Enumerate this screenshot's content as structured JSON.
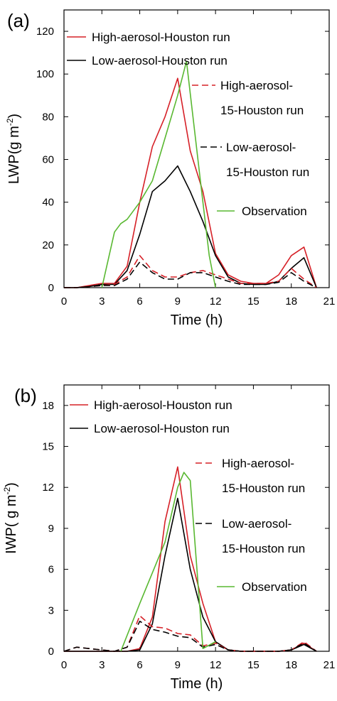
{
  "chart_data": [
    {
      "type": "line",
      "panel_label": "(a)",
      "xlabel": "Time (h)",
      "ylabel_main": "LWP(g m",
      "ylabel_sup": "-2",
      "ylabel_close": ")",
      "xlim": [
        0,
        21
      ],
      "ylim": [
        0,
        130
      ],
      "xticks": [
        "0",
        "3",
        "6",
        "9",
        "12",
        "15",
        "18",
        "21"
      ],
      "yticks": [
        "0",
        "20",
        "40",
        "60",
        "80",
        "100",
        "120"
      ],
      "legend": [
        {
          "label": "High-aerosol-Houston run",
          "color": "#d62027",
          "dashed": false
        },
        {
          "label": "Low-aerosol-Houston run",
          "color": "#000000",
          "dashed": false
        },
        {
          "label": "High-aerosol-",
          "label2": "15-Houston run",
          "color": "#d62027",
          "dashed": true
        },
        {
          "label": "Low-aerosol-",
          "label2": "15-Houston run",
          "color": "#000000",
          "dashed": true
        },
        {
          "label": "Observation",
          "color": "#59b831",
          "dashed": false
        }
      ],
      "series": [
        {
          "name": "High-aerosol-Houston run",
          "color": "#d62027",
          "dashed": false,
          "x": [
            0,
            1,
            2,
            3,
            4,
            5,
            6,
            7,
            8,
            9,
            10,
            11,
            12,
            13,
            14,
            15,
            16,
            17,
            18,
            19,
            20
          ],
          "y": [
            0,
            0,
            1,
            2,
            2,
            10,
            40,
            66,
            80,
            98,
            64,
            45,
            16,
            6,
            3,
            2,
            2,
            6,
            15,
            19,
            0
          ]
        },
        {
          "name": "Low-aerosol-Houston run",
          "color": "#000000",
          "dashed": false,
          "x": [
            0,
            1,
            2,
            3,
            4,
            5,
            6,
            7,
            8,
            9,
            10,
            11,
            12,
            13,
            14,
            15,
            16,
            17,
            18,
            19,
            20
          ],
          "y": [
            0,
            0,
            0.5,
            1.5,
            1.5,
            8,
            25,
            45,
            50,
            57,
            45,
            31,
            15,
            5,
            2,
            1.5,
            1.5,
            3,
            9,
            14,
            0
          ]
        },
        {
          "name": "High-aerosol-15-Houston run",
          "color": "#d62027",
          "dashed": true,
          "x": [
            0,
            1,
            2,
            3,
            4,
            5,
            6,
            7,
            8,
            9,
            10,
            11,
            12,
            13,
            14,
            15,
            16,
            17,
            18,
            19,
            20
          ],
          "y": [
            0,
            0,
            0.5,
            1,
            1.5,
            5,
            15,
            8,
            5,
            5,
            7,
            8,
            6,
            4,
            2,
            2,
            2,
            3,
            9,
            4,
            0
          ]
        },
        {
          "name": "Low-aerosol-15-Houston run",
          "color": "#000000",
          "dashed": true,
          "x": [
            0,
            1,
            2,
            3,
            4,
            5,
            6,
            7,
            8,
            9,
            10,
            11,
            12,
            13,
            14,
            15,
            16,
            17,
            18,
            19,
            20
          ],
          "y": [
            0,
            0,
            0.5,
            1,
            1,
            4,
            12,
            7,
            4,
            4,
            7,
            7,
            5,
            3,
            1.5,
            1.5,
            1.5,
            2.5,
            7,
            3,
            0
          ]
        },
        {
          "name": "Observation",
          "color": "#59b831",
          "dashed": false,
          "x": [
            3,
            4,
            4.5,
            5,
            6,
            7,
            8,
            9,
            9.7,
            11,
            11.5,
            12
          ],
          "y": [
            0,
            26,
            30,
            32,
            40,
            50,
            70,
            90,
            106,
            40,
            15,
            0
          ]
        }
      ]
    },
    {
      "type": "line",
      "panel_label": "(b)",
      "xlabel": "Time (h)",
      "ylabel_main": "IWP( g m",
      "ylabel_sup": "-2",
      "ylabel_close": ")",
      "xlim": [
        0,
        21
      ],
      "ylim": [
        0,
        19.5
      ],
      "xticks": [
        "0",
        "3",
        "6",
        "9",
        "12",
        "15",
        "18",
        "21"
      ],
      "yticks": [
        "0",
        "3",
        "6",
        "9",
        "12",
        "15",
        "18"
      ],
      "legend": [
        {
          "label": "High-aerosol-Houston run",
          "color": "#d62027",
          "dashed": false
        },
        {
          "label": "Low-aerosol-Houston run",
          "color": "#000000",
          "dashed": false
        },
        {
          "label": "High-aerosol-",
          "label2": "15-Houston run",
          "color": "#d62027",
          "dashed": true
        },
        {
          "label": "Low-aerosol-",
          "label2": "15-Houston run",
          "color": "#000000",
          "dashed": true
        },
        {
          "label": "Observation",
          "color": "#59b831",
          "dashed": false
        }
      ],
      "series": [
        {
          "name": "High-aerosol-Houston run",
          "color": "#d62027",
          "dashed": false,
          "x": [
            0,
            1,
            2,
            3,
            4,
            5,
            6,
            7,
            8,
            9,
            10,
            11,
            12,
            13,
            14,
            15,
            16,
            17,
            18,
            19,
            20
          ],
          "y": [
            0,
            0,
            0,
            0,
            0,
            0,
            0.2,
            2.5,
            9.5,
            13.5,
            7,
            3.5,
            0.7,
            0.1,
            0,
            0,
            0,
            0,
            0.1,
            0.6,
            0
          ]
        },
        {
          "name": "Low-aerosol-Houston run",
          "color": "#000000",
          "dashed": false,
          "x": [
            0,
            1,
            2,
            3,
            4,
            5,
            6,
            7,
            8,
            9,
            10,
            11,
            12,
            13,
            14,
            15,
            16,
            17,
            18,
            19,
            20
          ],
          "y": [
            0,
            0,
            0,
            0,
            0,
            0,
            0.1,
            2,
            7,
            11.2,
            6,
            2.5,
            0.7,
            0.1,
            0,
            0,
            0,
            0,
            0.1,
            0.5,
            0
          ]
        },
        {
          "name": "High-aerosol-15-Houston run",
          "color": "#d62027",
          "dashed": true,
          "x": [
            0,
            1,
            2,
            3,
            4,
            5,
            6,
            7,
            8,
            9,
            10,
            11,
            12,
            13,
            14,
            15,
            16,
            17,
            18,
            19,
            20
          ],
          "y": [
            0,
            0.3,
            0.2,
            0.1,
            0,
            0.3,
            2.6,
            1.8,
            1.7,
            1.3,
            1.2,
            0.4,
            0.6,
            0.1,
            0,
            0,
            0,
            0,
            0.1,
            0.7,
            0
          ]
        },
        {
          "name": "Low-aerosol-15-Houston run",
          "color": "#000000",
          "dashed": true,
          "x": [
            0,
            1,
            2,
            3,
            4,
            5,
            6,
            7,
            8,
            9,
            10,
            11,
            12,
            13,
            14,
            15,
            16,
            17,
            18,
            19,
            20
          ],
          "y": [
            0,
            0.3,
            0.2,
            0.1,
            0,
            0.3,
            2.2,
            1.6,
            1.4,
            1.1,
            1.0,
            0.3,
            0.5,
            0.1,
            0,
            0,
            0,
            0,
            0.1,
            0.6,
            0
          ]
        },
        {
          "name": "Observation",
          "color": "#59b831",
          "dashed": false,
          "x": [
            4.5,
            6,
            8,
            9,
            9.5,
            10,
            11,
            12
          ],
          "y": [
            0,
            3.5,
            8,
            12,
            13.1,
            12.5,
            0.2,
            0.7
          ]
        }
      ]
    }
  ]
}
